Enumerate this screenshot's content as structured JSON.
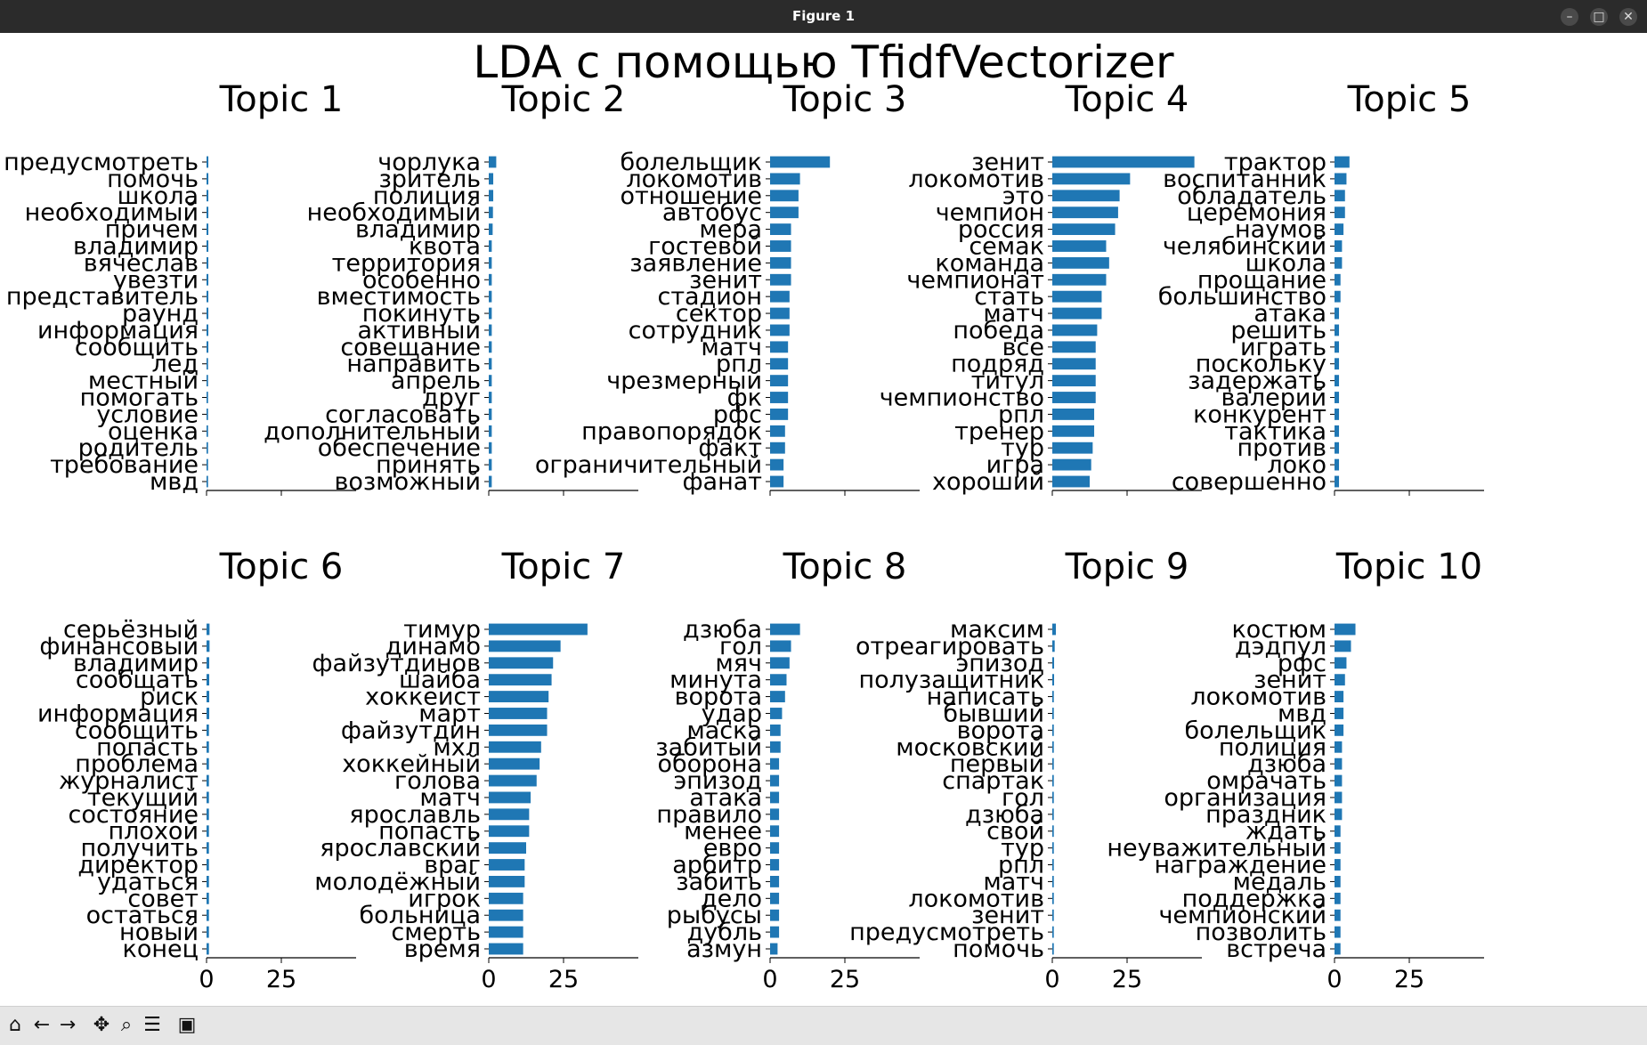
{
  "window": {
    "title": "Figure 1",
    "min_icon": "–",
    "max_icon": "□",
    "close_icon": "✕"
  },
  "toolbar": {
    "home_icon": "home-icon",
    "back_icon": "back-arrow-icon",
    "forward_icon": "forward-arrow-icon",
    "pan_icon": "pan-icon",
    "zoom_icon": "zoom-icon",
    "configure_icon": "configure-subplots-icon",
    "save_icon": "save-icon"
  },
  "colors": {
    "bar": "#1f77b4",
    "text": "#000000",
    "titlebar": "#2b2b2b",
    "toolbar": "#e6e6e6"
  },
  "chart_data": {
    "type": "bar",
    "orientation": "horizontal",
    "title": "LDA с помощью TfidfVectorizer",
    "xlim": [
      0,
      50
    ],
    "xticks": [
      0,
      25
    ],
    "panels": [
      {
        "title": "Topic 1",
        "categories": [
          "предусмотреть",
          "помочь",
          "школа",
          "необходимый",
          "причем",
          "владимир",
          "вячеслав",
          "увезти",
          "представитель",
          "раунд",
          "информация",
          "сообщить",
          "лед",
          "местный",
          "помогать",
          "условие",
          "оценка",
          "родитель",
          "требование",
          "мвд"
        ],
        "values": [
          0.6,
          0.6,
          0.6,
          0.6,
          0.6,
          0.6,
          0.6,
          0.6,
          0.6,
          0.6,
          0.6,
          0.6,
          0.5,
          0.5,
          0.5,
          0.5,
          0.5,
          0.5,
          0.5,
          0.5
        ]
      },
      {
        "title": "Topic 2",
        "categories": [
          "чорлука",
          "зритель",
          "полиция",
          "необходимый",
          "владимир",
          "квота",
          "территория",
          "особенно",
          "вместимость",
          "покинуть",
          "активный",
          "совещание",
          "направить",
          "апрель",
          "друг",
          "согласовать",
          "дополнительный",
          "обеспечение",
          "принять",
          "возможный"
        ],
        "values": [
          2.5,
          1.5,
          1.5,
          1.4,
          1.3,
          1.0,
          1.0,
          1.0,
          1.0,
          1.0,
          1.0,
          1.0,
          1.0,
          1.0,
          1.0,
          1.0,
          1.0,
          1.0,
          1.0,
          1.0
        ]
      },
      {
        "title": "Topic 3",
        "categories": [
          "болельщик",
          "локомотив",
          "отношение",
          "автобус",
          "мера",
          "гостевой",
          "заявление",
          "зенит",
          "стадион",
          "сектор",
          "сотрудник",
          "матч",
          "рпл",
          "чрезмерный",
          "фк",
          "рфс",
          "правопорядок",
          "факт",
          "ограничительный",
          "фанат"
        ],
        "values": [
          20,
          10,
          9.5,
          9.5,
          7,
          7,
          7,
          7,
          6.5,
          6.5,
          6.5,
          6,
          6,
          6,
          6,
          6,
          5,
          5,
          4.5,
          4.5
        ]
      },
      {
        "title": "Topic 4",
        "categories": [
          "зенит",
          "локомотив",
          "это",
          "чемпион",
          "россия",
          "семак",
          "команда",
          "чемпионат",
          "стать",
          "матч",
          "победа",
          "все",
          "подряд",
          "титул",
          "чемпионство",
          "рпл",
          "тренер",
          "тур",
          "игра",
          "хороший"
        ],
        "values": [
          47.5,
          26,
          22.5,
          22,
          21,
          18,
          19,
          18,
          16.5,
          16.5,
          15,
          14.5,
          14.5,
          14.5,
          14.5,
          14,
          14,
          13.5,
          13,
          12.5
        ]
      },
      {
        "title": "Topic 5",
        "categories": [
          "трактор",
          "воспитанник",
          "обладатель",
          "церемония",
          "наумов",
          "челябинский",
          "школа",
          "прощание",
          "большинство",
          "атака",
          "решить",
          "играть",
          "поскольку",
          "задержать",
          "валерий",
          "конкурент",
          "тактика",
          "против",
          "локо",
          "совершенно"
        ],
        "values": [
          5,
          4,
          3.5,
          3.5,
          3,
          2.5,
          2.5,
          2,
          2,
          1.5,
          1.5,
          1.5,
          1.5,
          1.5,
          1.5,
          1.5,
          1.5,
          1.5,
          1.5,
          1.5
        ]
      },
      {
        "title": "Topic 6",
        "categories": [
          "серьёзный",
          "финансовый",
          "владимир",
          "сообщать",
          "риск",
          "информация",
          "сообщить",
          "попасть",
          "проблема",
          "журналист",
          "текущий",
          "состояние",
          "плохой",
          "получить",
          "директор",
          "удаться",
          "совет",
          "остаться",
          "новый",
          "конец"
        ],
        "values": [
          1.0,
          1.0,
          0.9,
          0.9,
          0.9,
          0.9,
          0.8,
          0.8,
          0.8,
          0.8,
          0.8,
          0.8,
          0.8,
          0.8,
          0.8,
          0.8,
          0.8,
          0.8,
          0.8,
          0.8
        ]
      },
      {
        "title": "Topic 7",
        "categories": [
          "тимур",
          "динамо",
          "файзутдинов",
          "шайба",
          "хоккеист",
          "март",
          "файзутдин",
          "мхл",
          "хоккейный",
          "голова",
          "матч",
          "ярославль",
          "попасть",
          "ярославский",
          "враг",
          "молодёжный",
          "игрок",
          "больница",
          "смерть",
          "время"
        ],
        "values": [
          33,
          24,
          21.5,
          21,
          20,
          19.5,
          19.5,
          17.5,
          17,
          16,
          14,
          13.5,
          13.5,
          12.5,
          12,
          12,
          11.5,
          11.5,
          11.5,
          11.5
        ]
      },
      {
        "title": "Topic 8",
        "categories": [
          "дзюба",
          "гол",
          "мяч",
          "минута",
          "ворота",
          "удар",
          "маска",
          "забитый",
          "оборона",
          "эпизод",
          "атака",
          "правило",
          "менее",
          "евро",
          "арбитр",
          "забить",
          "дело",
          "рыбусы",
          "дубль",
          "азмун"
        ],
        "values": [
          10,
          7,
          6.5,
          5.5,
          5,
          4,
          3.5,
          3.5,
          3,
          3,
          3,
          3,
          3,
          3,
          3,
          3,
          3,
          3,
          3,
          2.5
        ]
      },
      {
        "title": "Topic 9",
        "categories": [
          "максим",
          "отреагировать",
          "эпизод",
          "полузащитник",
          "написать",
          "бывший",
          "ворота",
          "московский",
          "первый",
          "спартак",
          "гол",
          "дзюба",
          "свой",
          "тур",
          "рпл",
          "матч",
          "локомотив",
          "зенит",
          "предусмотреть",
          "помочь"
        ],
        "values": [
          1.2,
          0.8,
          0.6,
          0.6,
          0.5,
          0.5,
          0.5,
          0.5,
          0.5,
          0.5,
          0.5,
          0.5,
          0.5,
          0.5,
          0.5,
          0.5,
          0.5,
          0.5,
          0.5,
          0.5
        ]
      },
      {
        "title": "Topic 10",
        "categories": [
          "костюм",
          "дэдпул",
          "рфс",
          "зенит",
          "локомотив",
          "мвд",
          "болельщик",
          "полиция",
          "дзюба",
          "омрачать",
          "организация",
          "праздник",
          "ждать",
          "неуважительный",
          "награждение",
          "медаль",
          "поддержка",
          "чемпионский",
          "позволить",
          "встреча"
        ],
        "values": [
          7,
          5.5,
          4,
          3.5,
          3,
          3,
          3,
          2.5,
          2.5,
          2.5,
          2.5,
          2.5,
          2,
          2,
          2,
          2,
          2,
          2,
          2,
          2
        ]
      }
    ]
  }
}
